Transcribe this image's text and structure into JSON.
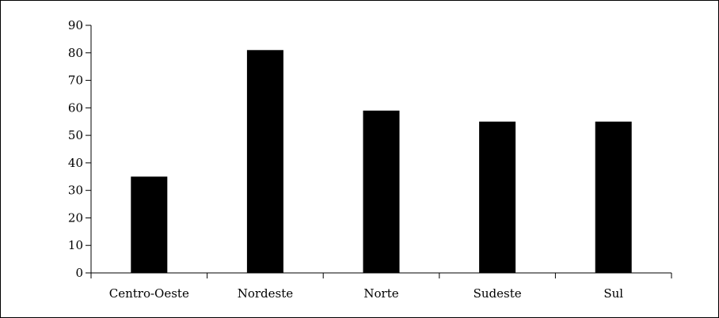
{
  "chart_data": {
    "type": "bar",
    "categories": [
      "Centro-Oeste",
      "Nordeste",
      "Norte",
      "Sudeste",
      "Sul"
    ],
    "values": [
      35,
      81,
      59,
      55,
      55
    ],
    "title": "",
    "xlabel": "",
    "ylabel": "",
    "ylim": [
      0,
      90
    ],
    "yticks": [
      0,
      10,
      20,
      30,
      40,
      50,
      60,
      70,
      80,
      90
    ],
    "grid": false,
    "bar_color": "#000000",
    "frame_color": "#000000"
  }
}
